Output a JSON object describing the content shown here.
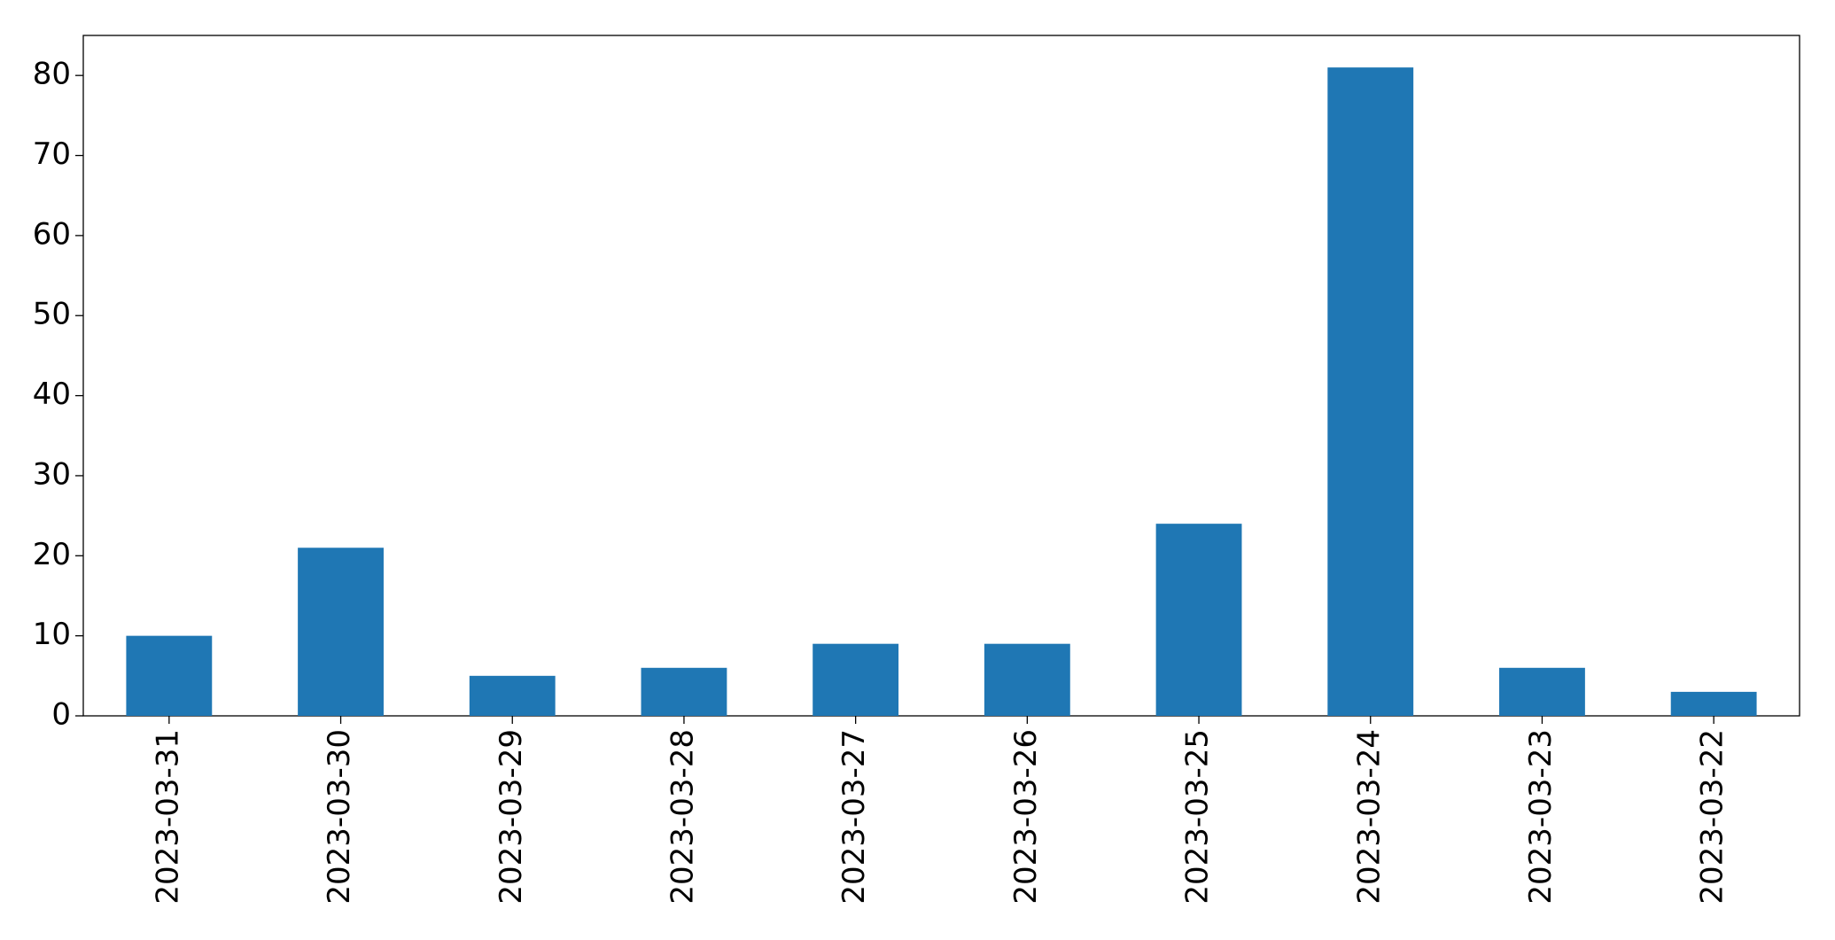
{
  "chart_data": {
    "type": "bar",
    "categories": [
      "2023-03-31",
      "2023-03-30",
      "2023-03-29",
      "2023-03-28",
      "2023-03-27",
      "2023-03-26",
      "2023-03-25",
      "2023-03-24",
      "2023-03-23",
      "2023-03-22"
    ],
    "values": [
      10,
      21,
      5,
      6,
      9,
      9,
      24,
      81,
      6,
      3
    ],
    "color": "#1f77b4",
    "ylim": [
      0,
      85
    ],
    "yticks": [
      0,
      10,
      20,
      30,
      40,
      50,
      60,
      70,
      80
    ],
    "grid": false
  }
}
